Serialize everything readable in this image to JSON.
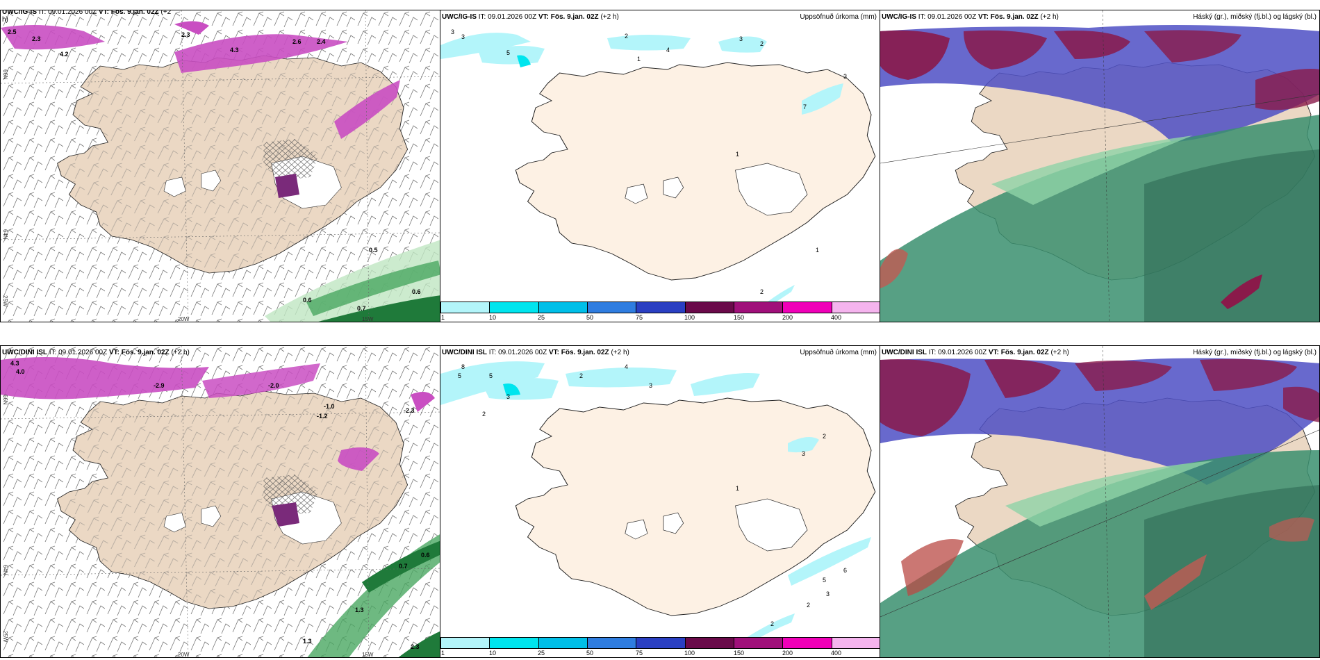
{
  "panels": {
    "r1_wind": {
      "header_model": "UWC/IG-IS",
      "header_it": "IT: 09.01.2026 00Z",
      "header_vt": "VT: Fös. 9.jan. 02Z",
      "header_lead": "(+2",
      "header_lead2": "h)"
    },
    "r1_precip": {
      "header_model": "UWC/IG-IS",
      "header_it": "IT: 09.01.2026 00Z",
      "header_vt": "VT: Fös. 9.jan. 02Z",
      "header_lead": "(+2 h)",
      "title_right": "Uppsöfnuð úrkoma (mm)"
    },
    "r1_cloud": {
      "header_model": "UWC/IG-IS",
      "header_it": "IT: 09.01.2026 00Z",
      "header_vt": "VT: Fös. 9.jan. 02Z",
      "header_lead": "(+2 h)",
      "title_right": "Háský (gr.), miðský (fj.bl.) og lágský (bl.)"
    },
    "r2_wind": {
      "header_model": "UWC/DINI ISL",
      "header_it": "IT: 09.01.2026 00Z",
      "header_vt": "VT: Fös. 9.jan. 02Z",
      "header_lead": "(+2 h)"
    },
    "r2_precip": {
      "header_model": "UWC/DINI ISL",
      "header_it": "IT: 09.01.2026 00Z",
      "header_vt": "VT: Fös. 9.jan. 02Z",
      "header_lead": "(+2 h)",
      "title_right": "Uppsöfnuð úrkoma (mm)"
    },
    "r2_cloud": {
      "header_model": "UWC/DINI ISL",
      "header_it": "IT: 09.01.2026 00Z",
      "header_vt": "VT: Fös. 9.jan. 02Z",
      "header_lead": "(+2 h)",
      "title_right": "Háský (gr.), miðský (fj.bl.) og lágský (bl.)"
    }
  },
  "axis_labels": {
    "lon_20": "20W",
    "lon_15": "15W",
    "lon_25": "25W",
    "lat_66": "66N",
    "lat_64": "64N"
  },
  "colorbar": {
    "colors": [
      "#b3f5fa",
      "#00e5ee",
      "#00bfe8",
      "#2f7de0",
      "#2a3fc2",
      "#6a0a4a",
      "#a0107a",
      "#f000b8",
      "#f5b4ee"
    ],
    "ticks": [
      "1",
      "10",
      "25",
      "50",
      "75",
      "100",
      "150",
      "200",
      "400"
    ]
  },
  "wind_values_r1": [
    "2.5",
    "2.3",
    "4.2",
    "2.3",
    "4.3",
    "2.6",
    "2.4",
    "0.5",
    "0.6",
    "0.7",
    "0.6"
  ],
  "wind_values_r2": [
    "4.3",
    "4.0",
    "-2.9",
    "-2.0",
    "-1.0",
    "-1.2",
    "-2.3",
    "0.7",
    "0.6",
    "1.3",
    "2.3",
    "1.3"
  ],
  "precip_values_r1": [
    "3",
    "3",
    "5",
    "2",
    "4",
    "1",
    "3",
    "2",
    "3",
    "7",
    "1",
    "1",
    "2"
  ],
  "precip_values_r2": [
    "8",
    "5",
    "5",
    "3",
    "2",
    "4",
    "3",
    "2",
    "1",
    "3",
    "2",
    "6",
    "5",
    "3",
    "2",
    "2"
  ],
  "map_colors": {
    "land": "#ebd8c4",
    "precip_land": "#fdf1e4",
    "magenta": "#c94ec2",
    "purple": "#7a2a7a",
    "green": "#4aa862",
    "cloud_high": "#8a1a4a",
    "cloud_mid": "#4d4fc4",
    "cloud_low": "#3a8f6e"
  }
}
